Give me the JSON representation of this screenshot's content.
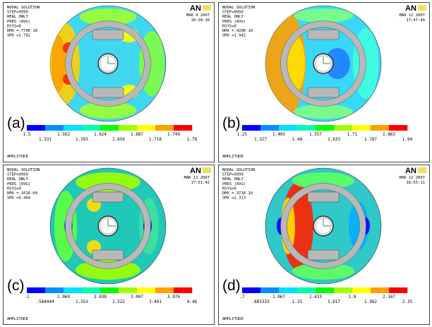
{
  "panels": [
    {
      "label": "(a)",
      "logo": "AN",
      "date": "MAR  9 2007",
      "time": "10:28:16",
      "header": [
        "NODAL SOLUTION",
        "STEP=9999",
        "REAL ONLY",
        "PRES    (AVG)",
        "RSYS=0",
        "DMX =.770E-10",
        "SMX =1.782"
      ],
      "legend": [
        "1.5",
        "1.531",
        "1.562",
        "1.593",
        "1.624",
        "1.656",
        "1.687",
        "1.718",
        "1.749",
        "1.78"
      ],
      "legend_title": "AMPLITUDE"
    },
    {
      "label": "(b)",
      "logo": "AN",
      "date": "MAR 12 2007",
      "time": "17:47:49",
      "header": [
        "NODAL SOLUTION",
        "STEP=9999",
        "REAL ONLY",
        "PRES    (AVG)",
        "RSYS=0",
        "DMX =.420E-10",
        "SMX =1.942"
      ],
      "legend": [
        "1.25",
        "1.327",
        "1.403",
        "1.48",
        "1.557",
        "1.633",
        "1.71",
        "1.787",
        "1.863",
        "1.94"
      ],
      "legend_title": "AMPLITUDE"
    },
    {
      "label": "(c)",
      "logo": "AN",
      "date": "MAR 12 2007",
      "time": "17:51:42",
      "header": [
        "NODAL SOLUTION",
        "STEP=9999",
        "REAL ONLY",
        "PRES    (AVG)",
        "RSYS=0",
        "DMX =.161E-09",
        "SMX =4.484"
      ],
      "legend": [
        ".1",
        ".584444",
        "1.069",
        "1.553",
        "2.038",
        "2.522",
        "3.007",
        "3.491",
        "3.976",
        "4.46"
      ],
      "legend_title": "AMPLITUDE"
    },
    {
      "label": "(d)",
      "logo": "AN",
      "date": "MAR 12 2007",
      "time": "18:55:11",
      "header": [
        "NODAL SOLUTION",
        "STEP=9999",
        "REAL ONLY",
        "PRES    (AVG)",
        "RSYS=0",
        "DMX =.371E-10",
        "SMX =2.313"
      ],
      "legend": [
        ".7",
        ".883333",
        "1.067",
        "1.25",
        "1.433",
        "1.617",
        "1.8",
        "1.982",
        "2.167",
        "2.35"
      ],
      "legend_title": "AMPLITUDE"
    }
  ]
}
